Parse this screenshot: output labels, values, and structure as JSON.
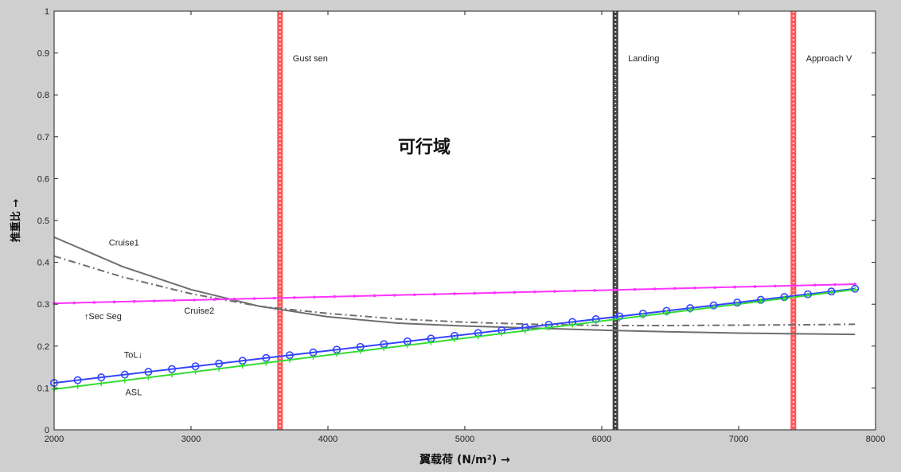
{
  "chart_data": {
    "type": "line",
    "xlabel": "翼载荷 (N/m²) →",
    "ylabel": "推重比 →",
    "xlim": [
      2000,
      8000
    ],
    "ylim": [
      0,
      1
    ],
    "xticks": [
      2000,
      3000,
      4000,
      5000,
      6000,
      7000,
      8000
    ],
    "yticks": [
      0,
      0.1,
      0.2,
      0.3,
      0.4,
      0.5,
      0.6,
      0.7,
      0.8,
      0.9,
      1
    ],
    "grid": false,
    "region_label": "可行域",
    "vertical_lines": [
      {
        "name": "Gust sen",
        "x": 3650,
        "color": "#ff3b3b"
      },
      {
        "name": "Landing",
        "x": 6100,
        "color": "#222222"
      },
      {
        "name": "Approach V",
        "x": 7400,
        "color": "#ff3b3b"
      }
    ],
    "series": [
      {
        "name": "Cruise1",
        "color": "#6e6e6e",
        "style": "solid",
        "x": [
          2000,
          2500,
          3000,
          3500,
          4000,
          4500,
          5000,
          5500,
          6000,
          6500,
          7000,
          7500,
          7850
        ],
        "y": [
          0.46,
          0.39,
          0.335,
          0.295,
          0.27,
          0.255,
          0.248,
          0.243,
          0.238,
          0.234,
          0.231,
          0.229,
          0.228
        ]
      },
      {
        "name": "Cruise2",
        "color": "#6e6e6e",
        "style": "dashdot",
        "x": [
          2000,
          2500,
          3000,
          3500,
          4000,
          4500,
          5000,
          5500,
          6000,
          6500,
          7000,
          7500,
          7850
        ],
        "y": [
          0.415,
          0.365,
          0.325,
          0.295,
          0.278,
          0.265,
          0.257,
          0.252,
          0.249,
          0.249,
          0.25,
          0.251,
          0.252
        ]
      },
      {
        "name": "Sec Seg",
        "color": "#ff33ff",
        "style": "solid",
        "marker": "dot",
        "x": [
          2000,
          7850
        ],
        "y": [
          0.302,
          0.348
        ]
      },
      {
        "name": "ToL",
        "color": "#3344ff",
        "style": "solid",
        "marker": "circle",
        "x": [
          2000,
          7850
        ],
        "y": [
          0.112,
          0.337
        ]
      },
      {
        "name": "ASL",
        "color": "#33dd33",
        "style": "solid",
        "marker": "plus",
        "x": [
          2000,
          7850
        ],
        "y": [
          0.097,
          0.335
        ]
      }
    ],
    "annotations": [
      {
        "text": "Cruise1",
        "x": 2400,
        "y": 0.44
      },
      {
        "text": "Cruise2",
        "x": 2950,
        "y": 0.278
      },
      {
        "text": "↑Sec Seg",
        "x": 2220,
        "y": 0.264
      },
      {
        "text": "ToL↓",
        "x": 2510,
        "y": 0.172
      },
      {
        "text": "ASL",
        "x": 2520,
        "y": 0.083
      }
    ]
  }
}
